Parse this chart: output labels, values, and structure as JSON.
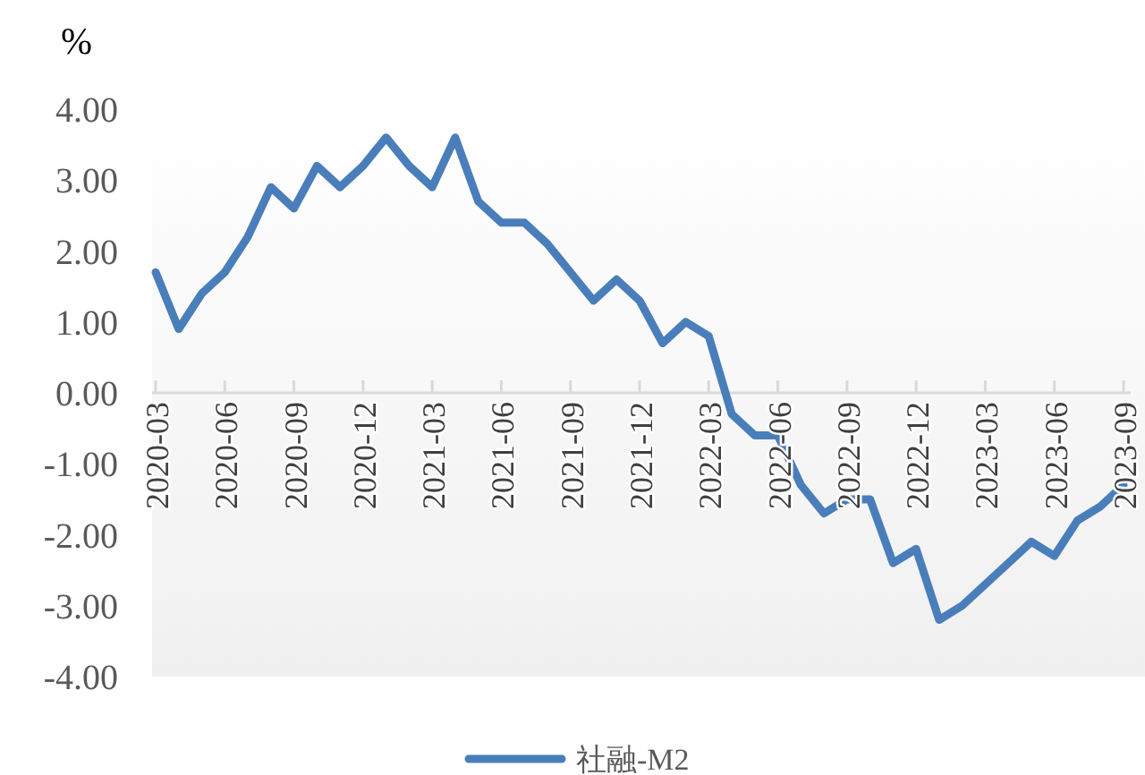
{
  "chart_data": {
    "type": "line",
    "ylabel": "%",
    "categories": [
      "2020-03",
      null,
      null,
      "2020-06",
      null,
      null,
      "2020-09",
      null,
      null,
      "2020-12",
      null,
      null,
      "2021-03",
      null,
      null,
      "2021-06",
      null,
      null,
      "2021-09",
      null,
      null,
      "2021-12",
      null,
      null,
      "2022-03",
      null,
      null,
      "2022-06",
      null,
      null,
      "2022-09",
      null,
      null,
      "2022-12",
      null,
      null,
      "2023-03",
      null,
      null,
      "2023-06",
      null,
      null,
      "2023-09"
    ],
    "series": [
      {
        "name": "社融-M2",
        "color": "#4a7ebb",
        "values": [
          1.7,
          0.9,
          1.4,
          1.7,
          2.2,
          2.9,
          2.6,
          3.2,
          2.9,
          3.2,
          3.6,
          3.2,
          2.9,
          3.6,
          2.7,
          2.4,
          2.4,
          2.1,
          1.7,
          1.3,
          1.6,
          1.3,
          0.7,
          1.0,
          0.8,
          -0.3,
          -0.6,
          -0.6,
          -1.3,
          -1.7,
          -1.5,
          -1.5,
          -2.4,
          -2.2,
          -3.2,
          -3.0,
          -2.7,
          -2.4,
          -2.1,
          -2.3,
          -1.8,
          -1.6,
          -1.3
        ]
      }
    ],
    "ylim": [
      -4,
      4
    ],
    "yticks": [
      {
        "value": 4,
        "label": "4.00"
      },
      {
        "value": 3,
        "label": "3.00"
      },
      {
        "value": 2,
        "label": "2.00"
      },
      {
        "value": 1,
        "label": "1.00"
      },
      {
        "value": 0,
        "label": "0.00"
      },
      {
        "value": -1,
        "label": "-1.00"
      },
      {
        "value": -2,
        "label": "-2.00"
      },
      {
        "value": -3,
        "label": "-3.00"
      },
      {
        "value": -4,
        "label": "-4.00"
      }
    ],
    "legend": "bottom",
    "marker": "none",
    "line_style": "solid"
  }
}
